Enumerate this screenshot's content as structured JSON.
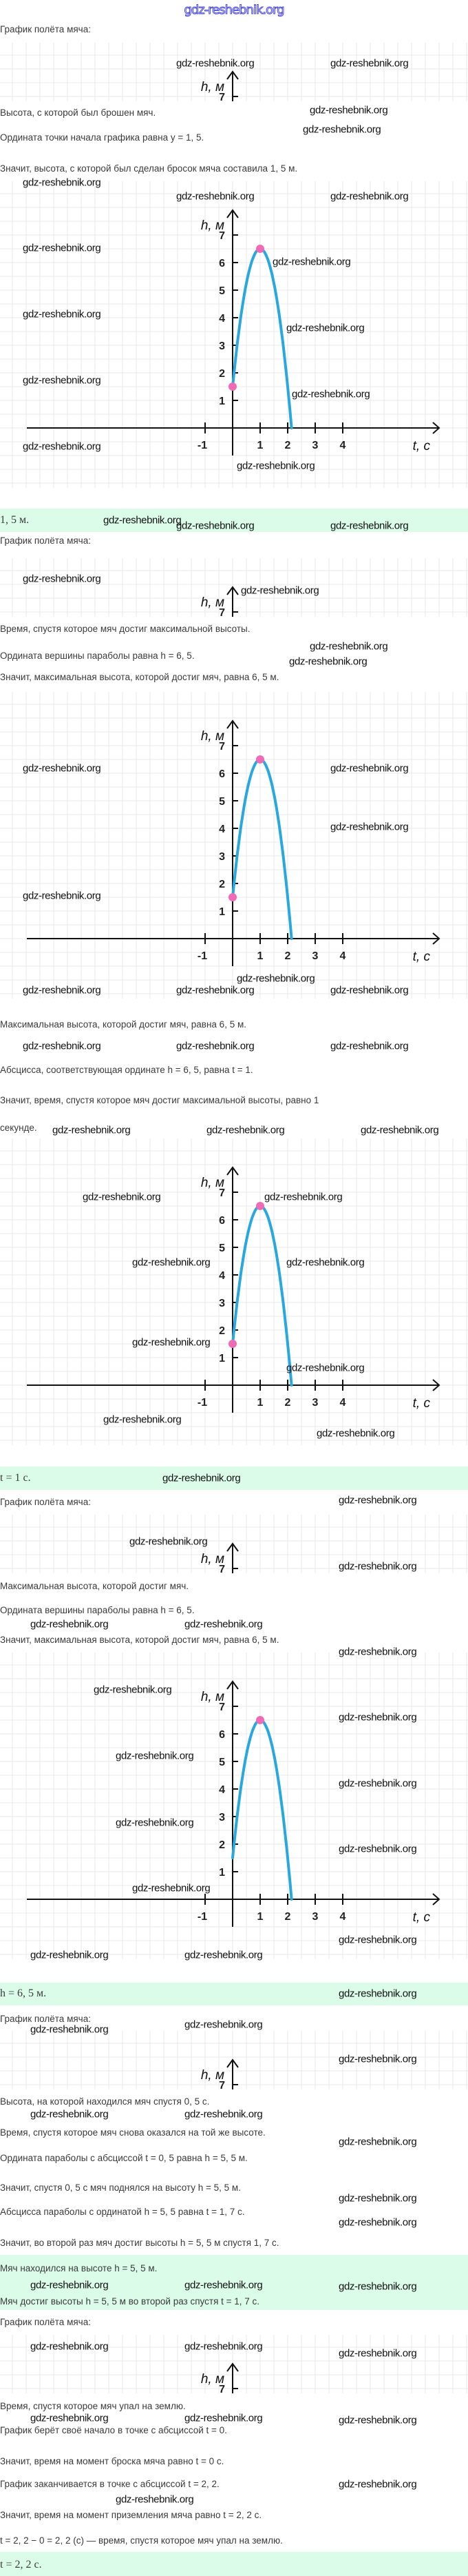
{
  "header": {
    "watermark": "gdz-reshebnik.org"
  },
  "watermark": "gdz-reshebnik.org",
  "graph": {
    "y_label": "h, м",
    "x_label": "t, с",
    "x_ticks": [
      "-1",
      "1",
      "2",
      "3",
      "4"
    ],
    "y_ticks": [
      "1",
      "2",
      "3",
      "4",
      "5",
      "6",
      "7"
    ],
    "curve": {
      "start": [
        0,
        1.5
      ],
      "vertex": [
        1,
        6.5
      ],
      "end_t": 2.2
    },
    "colors": {
      "curve": "#29a8e0",
      "point": "#f06bb5",
      "grid": "#e9e9e9",
      "axis": "#111111",
      "answer_bg": "#dcfcea"
    }
  },
  "sections": [
    {
      "heading": "График полёта мяча:",
      "question": "Высота, с которой был брошен мяч.",
      "lines": [
        "Ордината точки начала графика равна y = 1, 5.",
        "Значит, высота, с которой был сделан бросок мяча составила 1, 5 м."
      ],
      "answer": [
        "1, 5 м."
      ]
    },
    {
      "heading": "График полёта мяча:",
      "question": "Время, спустя которое мяч достиг максимальной высоты.",
      "lines": [
        "Ордината вершины параболы равна h = 6, 5.",
        "Значит, максимальная высота, которой достиг мяч, равна 6, 5 м.",
        "Максимальная высота, которой достиг мяч, равна 6, 5 м.",
        "Абсцисса, соответствующая ординате h = 6, 5, равна t = 1.",
        "Значит, время, спустя которое мяч достиг максимальной высоты, равно 1",
        "секунде."
      ],
      "answer": [
        "t = 1 с."
      ]
    },
    {
      "heading": "График полёта мяча:",
      "question": "Максимальная высота, которой достиг мяч.",
      "lines": [
        "Ордината вершины параболы равна h = 6, 5.",
        "Значит, максимальная высота, которой достиг мяч, равна 6, 5 м."
      ],
      "answer": [
        "h = 6, 5 м."
      ]
    },
    {
      "heading": "График полёта мяча:",
      "question": "Высота, на которой находился мяч спустя 0, 5 с.",
      "question2": "Время, спустя которое мяч снова оказался на той же высоте.",
      "lines": [
        "Ордината параболы с абсциссой t = 0, 5 равна h = 5, 5 м.",
        "Значит, спустя 0, 5 с мяч поднялся на высоту h = 5, 5 м.",
        "Абсцисса параболы с ординатой h = 5, 5 равна t = 1, 7 с.",
        "Значит, во второй раз мяч достиг высоты h = 5, 5 м спустя 1, 7 с."
      ],
      "answer": [
        "Мяч находился на высоте h = 5, 5 м.",
        "Мяч достиг высоты h = 5, 5 м во второй раз спустя t = 1, 7 с."
      ]
    },
    {
      "heading": "График полёта мяча:",
      "question": "Время, спустя которое мяч упал на землю.",
      "lines": [
        "График берёт своё начало в точке с абсциссой t = 0.",
        "Значит, время на момент броска мяча равно t = 0 с.",
        "График заканчивается в точке с абсциссой t = 2, 2.",
        "Значит, время на момент приземления мяча равно t = 2, 2 с.",
        "t = 2, 2 − 0 = 2, 2 (с) — время, спустя которое мяч упал на землю."
      ],
      "answer": [
        "t = 2, 2 с."
      ]
    }
  ]
}
